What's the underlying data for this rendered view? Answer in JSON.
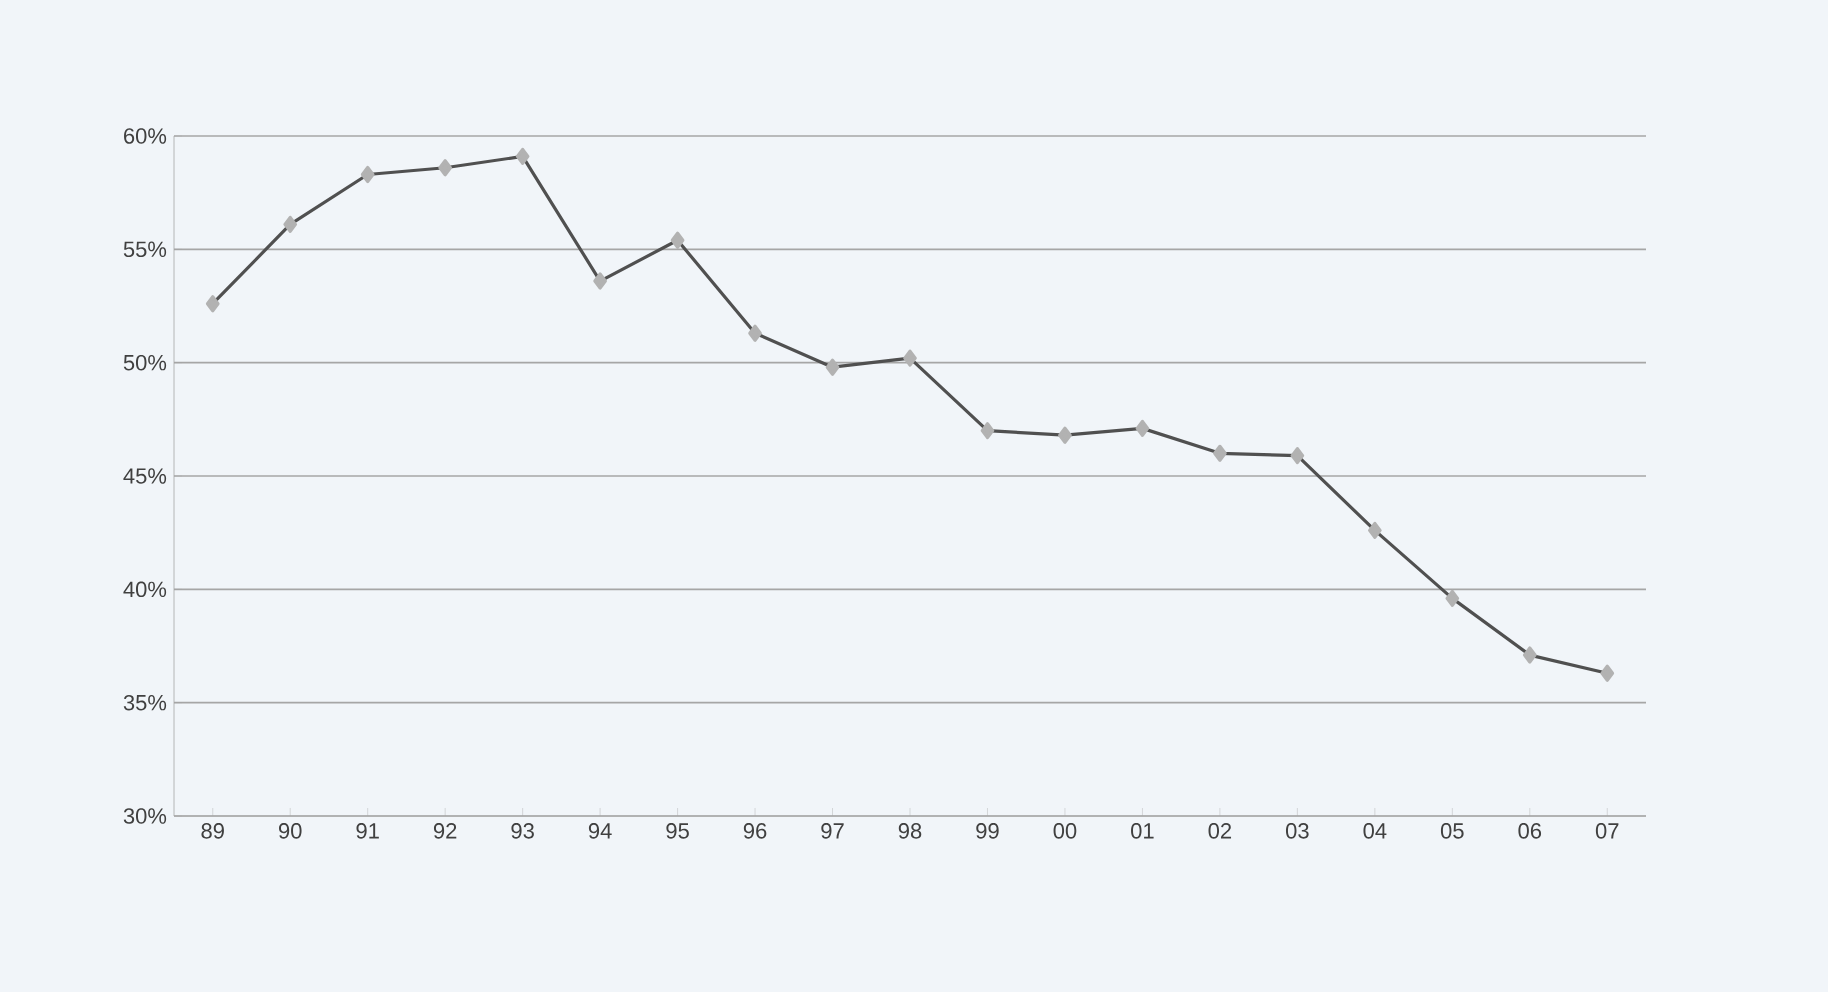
{
  "chart_data": {
    "type": "line",
    "categories": [
      "89",
      "90",
      "91",
      "92",
      "93",
      "94",
      "95",
      "96",
      "97",
      "98",
      "99",
      "00",
      "01",
      "02",
      "03",
      "04",
      "05",
      "06",
      "07"
    ],
    "values": [
      52.6,
      56.1,
      58.3,
      58.6,
      59.1,
      53.6,
      55.4,
      51.3,
      49.8,
      50.2,
      47.0,
      46.8,
      47.1,
      46.0,
      45.9,
      42.6,
      39.6,
      37.1,
      36.3
    ],
    "color": "#505050",
    "marker": "diamond",
    "line_style": "solid",
    "grid": "y",
    "ylim": [
      30,
      60
    ],
    "yticks": [
      {
        "value": 30,
        "label": "30%"
      },
      {
        "value": 35,
        "label": "35%"
      },
      {
        "value": 40,
        "label": "40%"
      },
      {
        "value": 45,
        "label": "45%"
      },
      {
        "value": 50,
        "label": "50%"
      },
      {
        "value": 55,
        "label": "55%"
      },
      {
        "value": 60,
        "label": "60%"
      }
    ]
  }
}
